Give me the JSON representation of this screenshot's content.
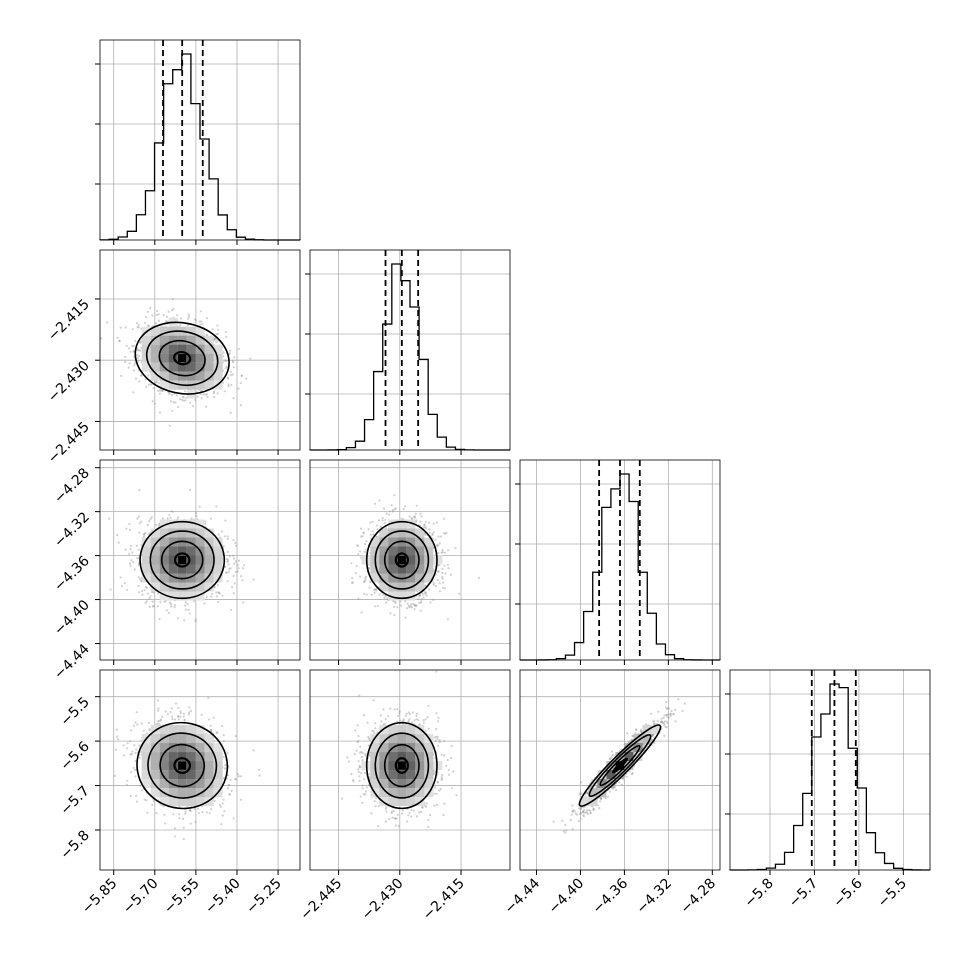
{
  "chart_data": {
    "type": "corner",
    "description_free": true,
    "grid": true,
    "parameters": [
      {
        "range": [
          -5.9,
          -5.17
        ],
        "ticks": [
          -5.85,
          -5.7,
          -5.55,
          -5.4,
          -5.25
        ],
        "tick_labels": [
          "−5.85",
          "−5.70",
          "−5.55",
          "−5.40",
          "−5.25"
        ],
        "mean": -5.6,
        "sd": 0.075,
        "quantiles": [
          -5.67,
          -5.6,
          -5.525
        ]
      },
      {
        "range": [
          -2.452,
          -2.403
        ],
        "ticks": [
          -2.445,
          -2.43,
          -2.415
        ],
        "tick_labels": [
          "−2.445",
          "−2.430",
          "−2.415"
        ],
        "mean": -2.4295,
        "sd": 0.0042,
        "quantiles": [
          -2.4335,
          -2.4295,
          -2.4255
        ]
      },
      {
        "range": [
          -4.455,
          -4.273
        ],
        "ticks": [
          -4.44,
          -4.4,
          -4.36,
          -4.32,
          -4.28
        ],
        "tick_labels": [
          "−4.44",
          "−4.40",
          "−4.36",
          "−4.32",
          "−4.28"
        ],
        "mean": -4.364,
        "sd": 0.017,
        "quantiles": [
          -4.383,
          -4.364,
          -4.346
        ]
      },
      {
        "range": [
          -5.89,
          -5.44
        ],
        "ticks": [
          -5.8,
          -5.7,
          -5.6,
          -5.5
        ],
        "tick_labels": [
          "−5.8",
          "−5.7",
          "−5.6",
          "−5.5"
        ],
        "mean": -5.655,
        "sd": 0.047,
        "quantiles": [
          -5.706,
          -5.655,
          -5.607
        ]
      }
    ],
    "correlations": {
      "1-0": -0.25,
      "2-0": 0.0,
      "2-1": 0.0,
      "3-0": -0.15,
      "3-1": 0.0,
      "3-2": 0.95
    },
    "colors": {
      "scatter": "#9a9a9a",
      "lines": "#000000",
      "grid": "#b0b0b0"
    }
  }
}
